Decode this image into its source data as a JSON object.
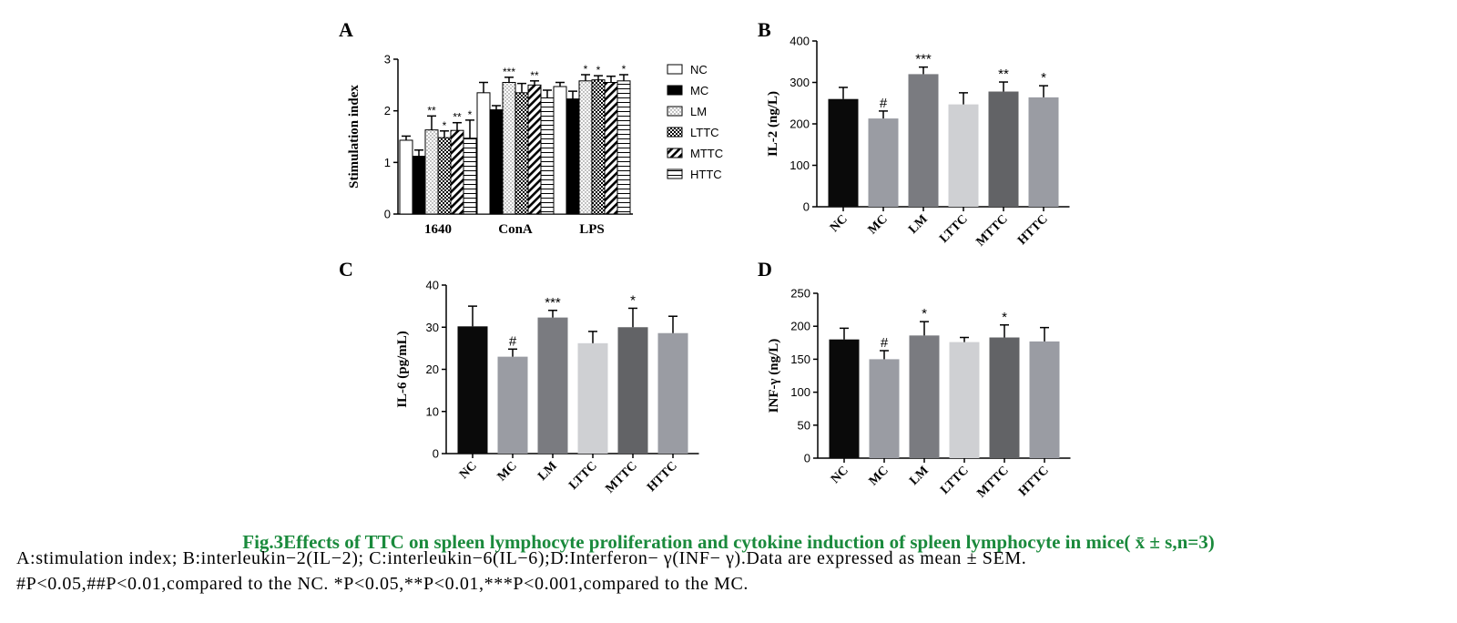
{
  "chart_data": [
    {
      "panel": "A",
      "type": "bar",
      "ylabel": "Stimulation index",
      "ylim": [
        0,
        3
      ],
      "yticks": [
        0,
        1,
        2,
        3
      ],
      "categories": [
        "1640",
        "ConA",
        "LPS"
      ],
      "series": [
        {
          "name": "NC",
          "values": [
            1.43,
            2.35,
            2.47
          ],
          "errors": [
            0.08,
            0.2,
            0.08
          ],
          "sig": [
            "",
            "",
            ""
          ]
        },
        {
          "name": "MC",
          "values": [
            1.12,
            2.02,
            2.23
          ],
          "errors": [
            0.12,
            0.08,
            0.15
          ],
          "sig": [
            "",
            "",
            ""
          ]
        },
        {
          "name": "LM",
          "values": [
            1.63,
            2.55,
            2.58
          ],
          "errors": [
            0.27,
            0.1,
            0.12
          ],
          "sig": [
            "**",
            "***",
            "*"
          ]
        },
        {
          "name": "LTTC",
          "values": [
            1.48,
            2.35,
            2.6
          ],
          "errors": [
            0.13,
            0.18,
            0.08
          ],
          "sig": [
            "*",
            "",
            "*"
          ]
        },
        {
          "name": "MTTC",
          "values": [
            1.62,
            2.5,
            2.55
          ],
          "errors": [
            0.15,
            0.08,
            0.12
          ],
          "sig": [
            "**",
            "**",
            ""
          ]
        },
        {
          "name": "HTTC",
          "values": [
            1.47,
            2.25,
            2.58
          ],
          "errors": [
            0.35,
            0.15,
            0.12
          ],
          "sig": [
            "*",
            "",
            "*"
          ]
        }
      ],
      "legend": "right"
    },
    {
      "panel": "B",
      "type": "bar",
      "ylabel": "IL-2 (ng/L)",
      "ylim": [
        0,
        400
      ],
      "yticks": [
        0,
        100,
        200,
        300,
        400
      ],
      "categories": [
        "NC",
        "MC",
        "LM",
        "LTTC",
        "MTTC",
        "HTTC"
      ],
      "values": [
        260,
        213,
        320,
        247,
        278,
        264
      ],
      "errors": [
        28,
        18,
        17,
        28,
        23,
        28
      ],
      "sig": [
        "",
        "#",
        "***",
        "",
        "**",
        "*"
      ],
      "colors": [
        "#0a0a0a",
        "#9a9ca3",
        "#7a7b80",
        "#cfd0d3",
        "#626366",
        "#9a9ca3"
      ]
    },
    {
      "panel": "C",
      "type": "bar",
      "ylabel": "IL-6 (pg/mL)",
      "ylim": [
        0,
        40
      ],
      "yticks": [
        0,
        10,
        20,
        30,
        40
      ],
      "categories": [
        "NC",
        "MC",
        "LM",
        "LTTC",
        "MTTC",
        "HTTC"
      ],
      "values": [
        30.2,
        23,
        32.3,
        26.2,
        30,
        28.6
      ],
      "errors": [
        4.8,
        1.8,
        1.7,
        2.8,
        4.5,
        4
      ],
      "sig": [
        "",
        "#",
        "***",
        "",
        "*",
        ""
      ],
      "colors": [
        "#0a0a0a",
        "#9a9ca3",
        "#7a7b80",
        "#cfd0d3",
        "#626366",
        "#9a9ca3"
      ]
    },
    {
      "panel": "D",
      "type": "bar",
      "ylabel": "INF-γ (ng/L)",
      "ylim": [
        0,
        250
      ],
      "yticks": [
        0,
        50,
        100,
        150,
        200,
        250
      ],
      "categories": [
        "NC",
        "MC",
        "LM",
        "LTTC",
        "MTTC",
        "HTTC"
      ],
      "values": [
        180,
        150,
        186,
        176,
        183,
        177
      ],
      "errors": [
        17,
        13,
        21,
        7,
        19,
        21
      ],
      "sig": [
        "",
        "#",
        "*",
        "",
        "*",
        ""
      ],
      "colors": [
        "#0a0a0a",
        "#9a9ca3",
        "#7a7b80",
        "#cfd0d3",
        "#626366",
        "#9a9ca3"
      ]
    }
  ],
  "caption": {
    "title": "Fig.3Effects of TTC on spleen lymphocyte proliferation and cytokine induction of spleen lymphocyte in mice( x̄ ± s,n=3)",
    "line1": "A:stimulation index; B:interleukin−2(IL−2); C:interleukin−6(IL−6);D:Interferon− γ(INF− γ).Data are expressed as mean ± SEM.",
    "line2": "#P<0.05,##P<0.01,compared to the NC. *P<0.05,**P<0.01,***P<0.001,compared to the MC."
  }
}
